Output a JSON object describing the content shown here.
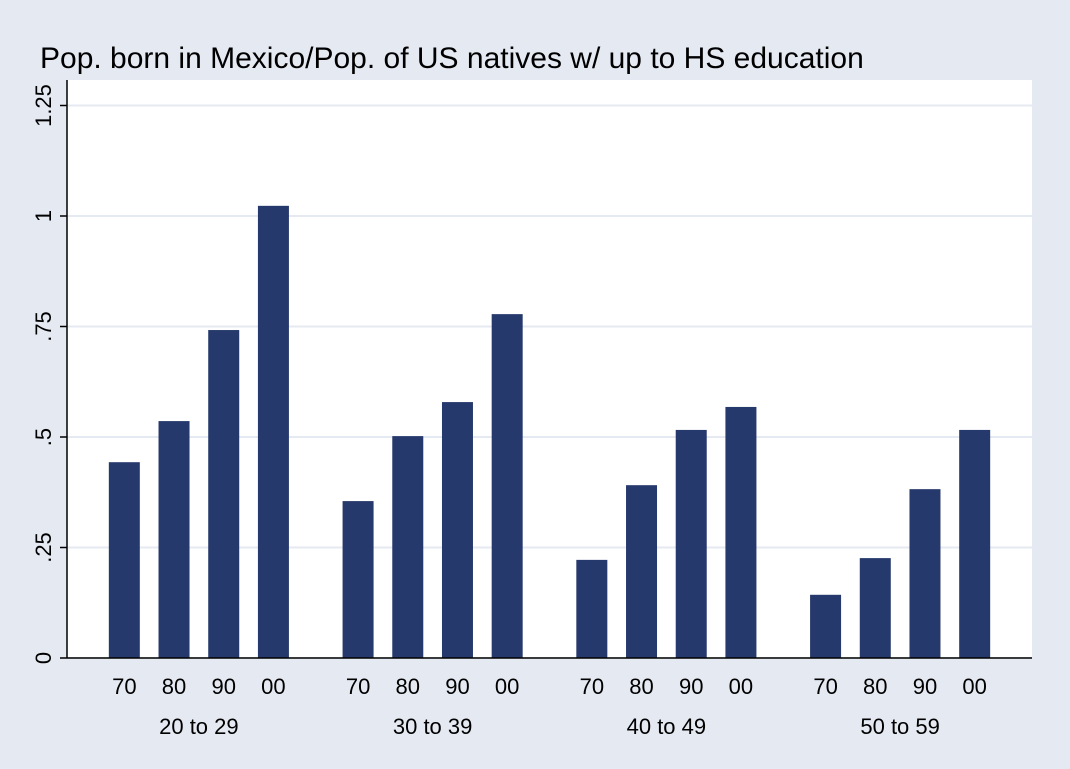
{
  "chart_data": {
    "type": "grouped_bar",
    "title": "Pop. born in Mexico/Pop. of US natives w/ up to HS education",
    "categories": [
      "20 to 29",
      "30 to 39",
      "40 to 49",
      "50 to 59"
    ],
    "subcategories": [
      "70",
      "80",
      "90",
      "00"
    ],
    "values": [
      [
        0.443,
        0.536,
        0.742,
        1.023
      ],
      [
        0.355,
        0.502,
        0.579,
        0.778
      ],
      [
        0.222,
        0.391,
        0.516,
        0.568
      ],
      [
        0.143,
        0.226,
        0.382,
        0.516
      ]
    ],
    "color": "#26396c",
    "ylim": [
      0,
      1.25
    ],
    "yticks": [
      0,
      {
        "value": 0.25,
        "label": ".25"
      },
      {
        "value": 0.5,
        "label": ".5"
      },
      {
        "value": 0.75,
        "label": ".75"
      },
      1,
      {
        "value": 1.25,
        "label": "1.25"
      }
    ],
    "grid": true
  }
}
